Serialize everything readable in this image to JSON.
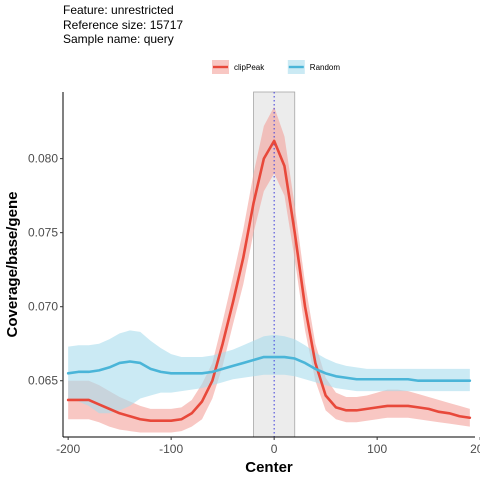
{
  "header": {
    "line1": "Feature: unrestricted",
    "line2": "Reference size: 15717",
    "line3": "Sample name: query"
  },
  "chart_data": {
    "type": "line",
    "xlabel": "Center",
    "ylabel": "Coverage/base/gene",
    "xlim": [
      -205,
      195
    ],
    "ylim": [
      0.0612,
      0.0845
    ],
    "xticks": [
      -200,
      -100,
      0,
      100,
      200
    ],
    "xtick_labels": [
      "-200",
      "-100",
      "0",
      "100",
      "200"
    ],
    "yticks": [
      0.065,
      0.07,
      0.075,
      0.08
    ],
    "ytick_labels": [
      "0.065",
      "0.070",
      "0.075",
      "0.080"
    ],
    "grid": false,
    "legend_position": "top",
    "highlight_region": [
      -20,
      20
    ],
    "center_line": 0,
    "series": [
      {
        "name": "clipPeak",
        "color": "#e8483a",
        "band_color": "#f4a29b",
        "x": [
          -200,
          -190,
          -180,
          -170,
          -160,
          -150,
          -140,
          -130,
          -120,
          -110,
          -100,
          -90,
          -80,
          -70,
          -60,
          -50,
          -40,
          -30,
          -20,
          -10,
          0,
          10,
          20,
          30,
          40,
          50,
          60,
          70,
          80,
          90,
          100,
          110,
          120,
          130,
          140,
          150,
          160,
          170,
          180,
          190
        ],
        "values": [
          0.0637,
          0.0637,
          0.0637,
          0.0634,
          0.0631,
          0.0628,
          0.0626,
          0.0624,
          0.0623,
          0.0623,
          0.0623,
          0.0624,
          0.0628,
          0.0636,
          0.065,
          0.0675,
          0.0703,
          0.0733,
          0.077,
          0.08,
          0.0812,
          0.0795,
          0.075,
          0.07,
          0.0662,
          0.064,
          0.0632,
          0.063,
          0.063,
          0.0631,
          0.0632,
          0.0633,
          0.0633,
          0.0633,
          0.0632,
          0.0631,
          0.0629,
          0.0628,
          0.0626,
          0.0625
        ],
        "lower": [
          0.0624,
          0.0624,
          0.0624,
          0.0622,
          0.0619,
          0.0617,
          0.0616,
          0.0615,
          0.0615,
          0.0615,
          0.0615,
          0.0616,
          0.0619,
          0.0624,
          0.0638,
          0.066,
          0.0688,
          0.0715,
          0.075,
          0.0778,
          0.079,
          0.0775,
          0.0732,
          0.0684,
          0.065,
          0.063,
          0.0624,
          0.0622,
          0.0622,
          0.0623,
          0.0624,
          0.0625,
          0.0625,
          0.0625,
          0.0624,
          0.0623,
          0.0622,
          0.0621,
          0.062,
          0.0619
        ],
        "upper": [
          0.065,
          0.065,
          0.065,
          0.0647,
          0.0643,
          0.0639,
          0.0636,
          0.0633,
          0.0631,
          0.0631,
          0.0631,
          0.0632,
          0.0637,
          0.0648,
          0.0662,
          0.069,
          0.072,
          0.0752,
          0.079,
          0.0822,
          0.0835,
          0.0815,
          0.0768,
          0.0716,
          0.0675,
          0.0652,
          0.0642,
          0.0639,
          0.0639,
          0.064,
          0.0642,
          0.0644,
          0.0644,
          0.0643,
          0.0641,
          0.0639,
          0.0637,
          0.0635,
          0.0633,
          0.0631
        ]
      },
      {
        "name": "Random",
        "color": "#4ab5d8",
        "band_color": "#a9dcec",
        "x": [
          -200,
          -190,
          -180,
          -170,
          -160,
          -150,
          -140,
          -130,
          -120,
          -110,
          -100,
          -90,
          -80,
          -70,
          -60,
          -50,
          -40,
          -30,
          -20,
          -10,
          0,
          10,
          20,
          30,
          40,
          50,
          60,
          70,
          80,
          90,
          100,
          110,
          120,
          130,
          140,
          150,
          160,
          170,
          180,
          190
        ],
        "values": [
          0.0655,
          0.0656,
          0.0656,
          0.0657,
          0.0659,
          0.0662,
          0.0663,
          0.0662,
          0.0658,
          0.0656,
          0.0655,
          0.0655,
          0.0655,
          0.0655,
          0.0656,
          0.0658,
          0.066,
          0.0662,
          0.0664,
          0.0666,
          0.0666,
          0.0666,
          0.0665,
          0.0662,
          0.0658,
          0.0655,
          0.0653,
          0.0652,
          0.0651,
          0.0651,
          0.0651,
          0.0651,
          0.0651,
          0.0651,
          0.065,
          0.065,
          0.065,
          0.065,
          0.065,
          0.065
        ],
        "lower": [
          0.0638,
          0.0636,
          0.0633,
          0.0628,
          0.0628,
          0.063,
          0.0633,
          0.0638,
          0.064,
          0.0642,
          0.0642,
          0.0643,
          0.0644,
          0.0645,
          0.0647,
          0.0649,
          0.0651,
          0.0652,
          0.0653,
          0.0654,
          0.0654,
          0.0654,
          0.0653,
          0.0651,
          0.0649,
          0.0647,
          0.0645,
          0.0644,
          0.0643,
          0.0643,
          0.0643,
          0.0643,
          0.0643,
          0.0643,
          0.0643,
          0.0643,
          0.0643,
          0.0643,
          0.0643,
          0.0643
        ],
        "upper": [
          0.0673,
          0.0674,
          0.0674,
          0.0675,
          0.0678,
          0.0682,
          0.0684,
          0.0683,
          0.0677,
          0.0672,
          0.0668,
          0.0666,
          0.0666,
          0.0666,
          0.0667,
          0.0669,
          0.0671,
          0.0674,
          0.0677,
          0.068,
          0.0681,
          0.068,
          0.0678,
          0.0674,
          0.0669,
          0.0665,
          0.0662,
          0.066,
          0.0659,
          0.0658,
          0.0658,
          0.0658,
          0.0658,
          0.0658,
          0.0658,
          0.0658,
          0.0658,
          0.0658,
          0.0658,
          0.0658
        ]
      }
    ]
  }
}
